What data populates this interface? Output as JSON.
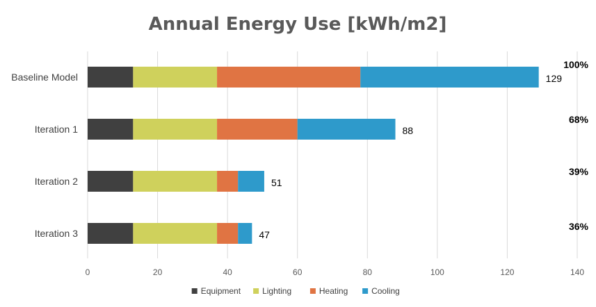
{
  "chart_data": {
    "type": "bar",
    "orientation": "horizontal",
    "stacked": true,
    "title": "Annual Energy Use [kWh/m2]",
    "categories": [
      "Baseline Model",
      "Iteration 1",
      "Iteration 2",
      "Iteration 3"
    ],
    "series": [
      {
        "name": "Equipment",
        "color": "#404040",
        "values": [
          13,
          13,
          13,
          13
        ]
      },
      {
        "name": "Lighting",
        "color": "#cfd15c",
        "values": [
          24,
          24,
          24,
          24
        ]
      },
      {
        "name": "Heating",
        "color": "#e07443",
        "values": [
          41,
          23,
          6,
          6
        ]
      },
      {
        "name": "Cooling",
        "color": "#2e9acb",
        "values": [
          51,
          28,
          7.5,
          4
        ]
      }
    ],
    "totals": [
      "129",
      "88",
      "51",
      "47"
    ],
    "percent_labels": [
      "100%",
      "68%",
      "39%",
      "36%"
    ],
    "xlim": [
      0,
      140
    ],
    "xticks": [
      0,
      20,
      40,
      60,
      80,
      100,
      120,
      140
    ],
    "grid": true,
    "legend_position": "bottom"
  }
}
